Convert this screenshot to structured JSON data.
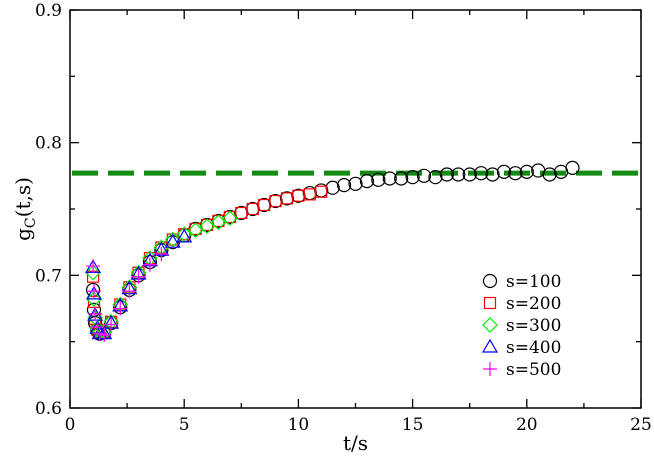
{
  "chart_data": {
    "type": "scatter",
    "xlabel": "t/s",
    "ylabel": {
      "main": "g",
      "sub": "C",
      "tail": "(t,s)"
    },
    "xlim": [
      0,
      25
    ],
    "ylim": [
      0.6,
      0.9
    ],
    "xticks": [
      0,
      5,
      10,
      15,
      20,
      25
    ],
    "xtick_labels": [
      "0",
      "5",
      "10",
      "15",
      "20",
      "25"
    ],
    "yticks": [
      0.6,
      0.7,
      0.8,
      0.9
    ],
    "ytick_labels": [
      "0.6",
      "0.7",
      "0.8",
      "0.9"
    ],
    "grid": false,
    "legend_position": "lower-right",
    "reference_line": {
      "y": 0.777,
      "style": "dashed",
      "color": "#138a13"
    },
    "series": [
      {
        "name": "s=100",
        "marker": "circle",
        "color": "#000000",
        "x": [
          1.01,
          1.05,
          1.1,
          1.2,
          1.3,
          1.5,
          1.8,
          2.2,
          2.6,
          3.0,
          3.5,
          4.0,
          4.5,
          5.0,
          5.5,
          6.0,
          6.5,
          7.0,
          7.5,
          8.0,
          8.5,
          9.0,
          9.5,
          10.0,
          10.5,
          11.0,
          11.5,
          12.0,
          12.5,
          13.0,
          13.5,
          14.0,
          14.5,
          15.0,
          15.5,
          16.0,
          16.5,
          17.0,
          17.5,
          18.0,
          18.5,
          19.0,
          19.5,
          20.0,
          20.5,
          21.0,
          21.5,
          22.0
        ],
        "y": [
          0.689,
          0.674,
          0.664,
          0.658,
          0.656,
          0.657,
          0.664,
          0.676,
          0.689,
          0.7,
          0.71,
          0.719,
          0.725,
          0.73,
          0.735,
          0.738,
          0.741,
          0.744,
          0.747,
          0.75,
          0.753,
          0.756,
          0.758,
          0.76,
          0.762,
          0.764,
          0.766,
          0.768,
          0.769,
          0.771,
          0.772,
          0.773,
          0.773,
          0.774,
          0.775,
          0.774,
          0.776,
          0.776,
          0.776,
          0.777,
          0.776,
          0.778,
          0.777,
          0.778,
          0.779,
          0.776,
          0.778,
          0.781
        ]
      },
      {
        "name": "s=200",
        "marker": "square",
        "color": "#ff0000",
        "x": [
          1.01,
          1.05,
          1.1,
          1.2,
          1.3,
          1.5,
          1.8,
          2.2,
          2.6,
          3.0,
          3.5,
          4.0,
          4.5,
          5.0,
          5.5,
          6.0,
          6.5,
          7.0,
          7.5,
          8.0,
          8.5,
          9.0,
          9.5,
          10.0,
          10.5,
          11.0
        ],
        "y": [
          0.699,
          0.68,
          0.667,
          0.659,
          0.657,
          0.657,
          0.665,
          0.678,
          0.691,
          0.702,
          0.713,
          0.721,
          0.727,
          0.731,
          0.735,
          0.738,
          0.741,
          0.744,
          0.747,
          0.75,
          0.753,
          0.756,
          0.758,
          0.76,
          0.761,
          0.763
        ]
      },
      {
        "name": "s=300",
        "marker": "diamond",
        "color": "#00ee00",
        "x": [
          1.01,
          1.05,
          1.1,
          1.2,
          1.3,
          1.5,
          1.8,
          2.2,
          2.6,
          3.0,
          3.5,
          4.0,
          4.5,
          5.0,
          5.5,
          6.0,
          6.5,
          7.0
        ],
        "y": [
          0.702,
          0.682,
          0.668,
          0.66,
          0.657,
          0.657,
          0.665,
          0.678,
          0.691,
          0.702,
          0.713,
          0.721,
          0.727,
          0.731,
          0.734,
          0.737,
          0.74,
          0.743
        ]
      },
      {
        "name": "s=400",
        "marker": "triangle",
        "color": "#0000ff",
        "x": [
          1.01,
          1.05,
          1.1,
          1.2,
          1.3,
          1.5,
          1.8,
          2.2,
          2.6,
          3.0,
          3.5,
          4.0,
          4.5,
          5.0
        ],
        "y": [
          0.706,
          0.686,
          0.67,
          0.66,
          0.656,
          0.656,
          0.664,
          0.677,
          0.69,
          0.701,
          0.711,
          0.719,
          0.725,
          0.729
        ]
      },
      {
        "name": "s=500",
        "marker": "plus",
        "color": "#ff00ff",
        "x": [
          1.01,
          1.05,
          1.1,
          1.2,
          1.3,
          1.5,
          1.8,
          2.2,
          2.6,
          3.0,
          3.5,
          4.0
        ],
        "y": [
          0.707,
          0.688,
          0.671,
          0.661,
          0.656,
          0.655,
          0.663,
          0.675,
          0.688,
          0.699,
          0.708,
          0.716
        ]
      }
    ]
  }
}
